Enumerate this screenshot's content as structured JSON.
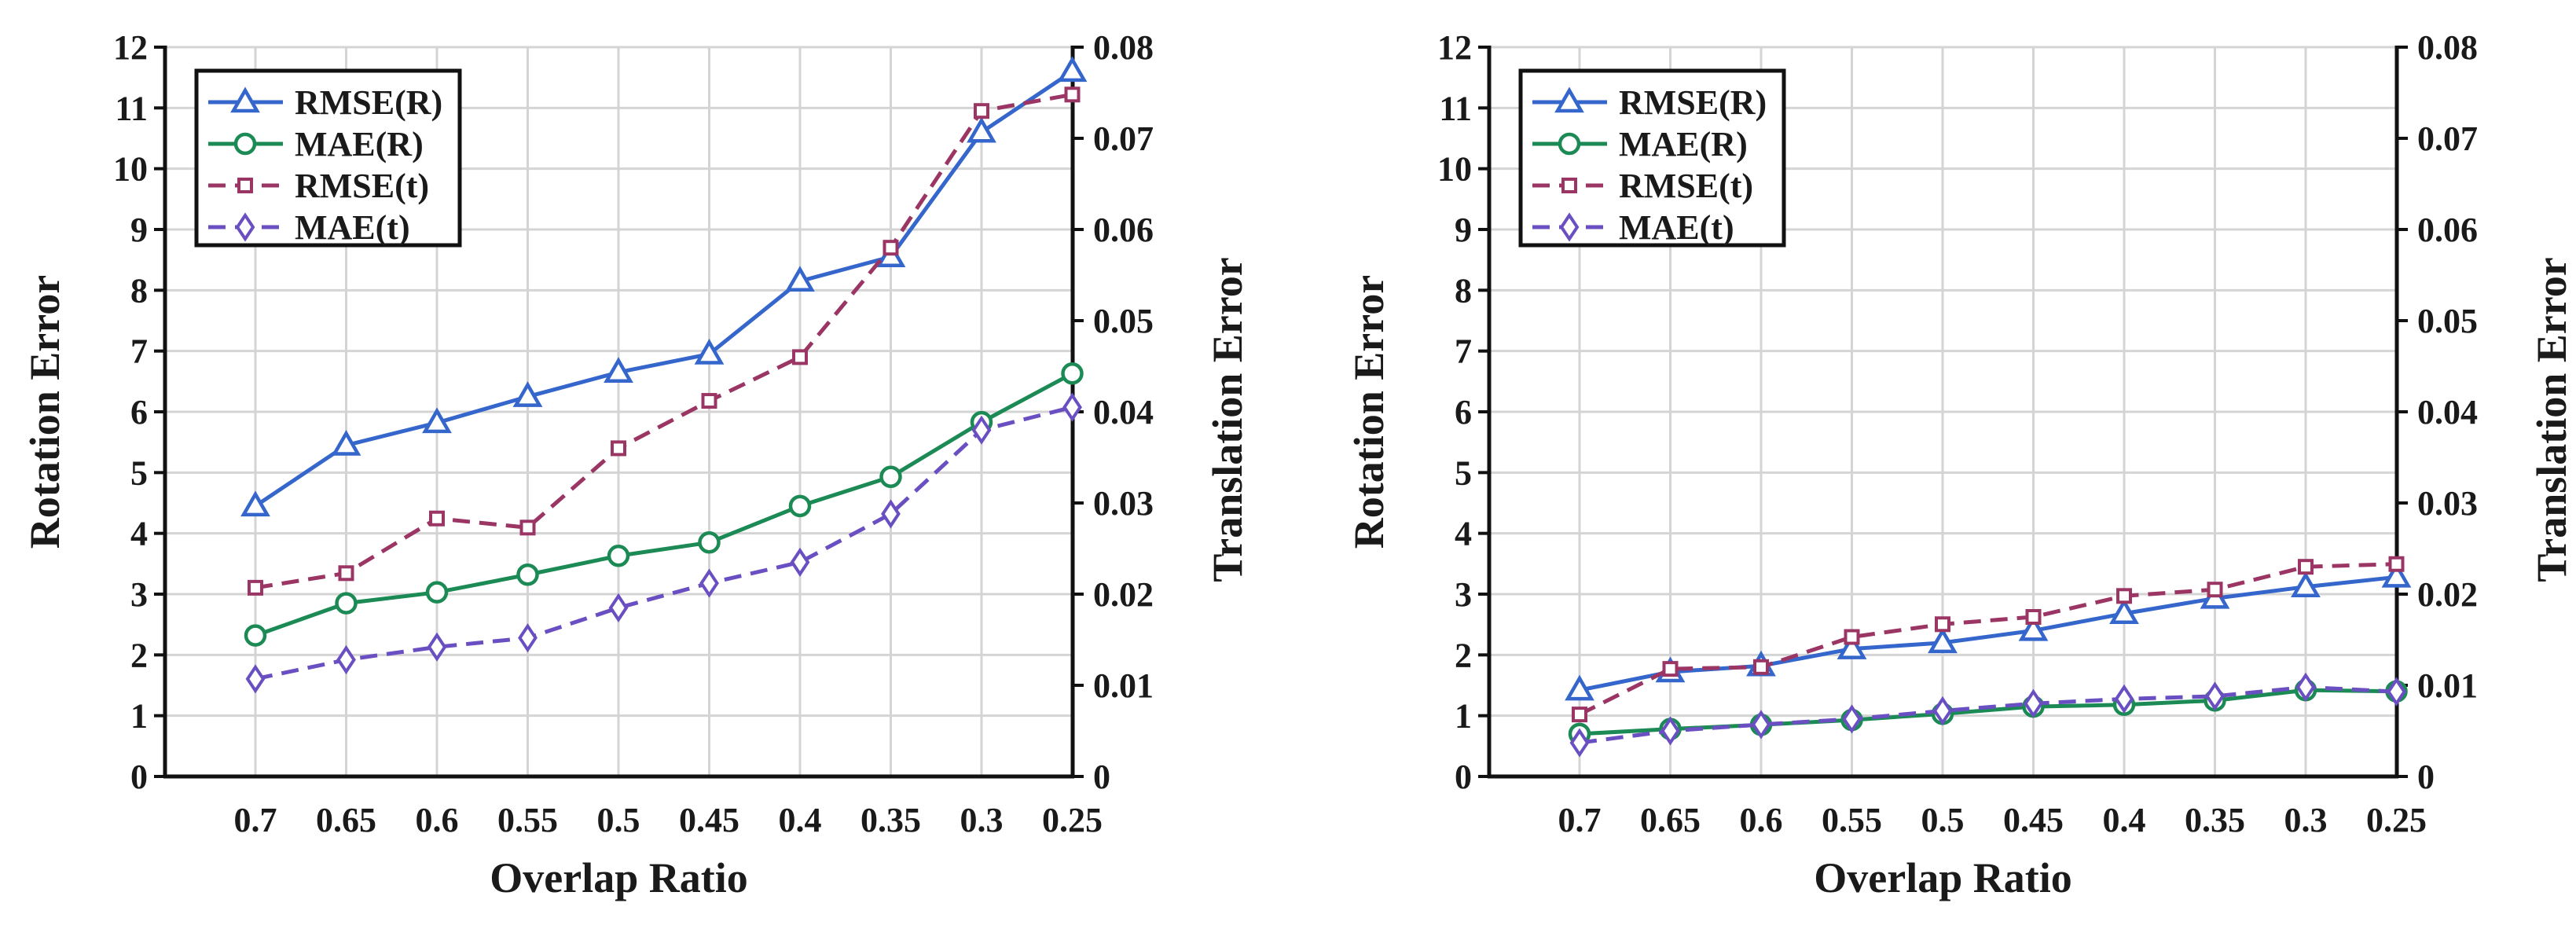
{
  "colors": {
    "rmse_r": "#3566cc",
    "mae_r": "#1c8a55",
    "rmse_t": "#9a3564",
    "mae_t": "#6a4fc2",
    "grid": "#d4d4d4",
    "axis": "#111111"
  },
  "chart_data": [
    {
      "type": "line",
      "title": "",
      "xlabel": "Overlap Ratio",
      "ylabel": "Rotation Error",
      "y2label": "Translation Error",
      "categories": [
        "0.7",
        "0.65",
        "0.6",
        "0.55",
        "0.5",
        "0.45",
        "0.4",
        "0.35",
        "0.3",
        "0.25"
      ],
      "ylim": [
        0,
        12
      ],
      "y2lim": [
        0,
        0.08
      ],
      "yticks": [
        "0",
        "1",
        "2",
        "3",
        "4",
        "5",
        "6",
        "7",
        "8",
        "9",
        "10",
        "11",
        "12"
      ],
      "y2ticks": [
        "0",
        "0.01",
        "0.02",
        "0.03",
        "0.04",
        "0.05",
        "0.06",
        "0.07",
        "0.08"
      ],
      "grid": true,
      "legend_position": "top-left",
      "series": [
        {
          "name": "RMSE(R)",
          "axis": "left",
          "values": [
            4.45,
            5.45,
            5.82,
            6.25,
            6.65,
            6.95,
            8.15,
            8.55,
            10.6,
            11.6
          ]
        },
        {
          "name": "MAE(R)",
          "axis": "left",
          "values": [
            2.32,
            2.85,
            3.03,
            3.32,
            3.63,
            3.85,
            4.45,
            4.93,
            5.83,
            6.63
          ]
        },
        {
          "name": "RMSE(t)",
          "axis": "right",
          "values": [
            0.0207,
            0.0223,
            0.0283,
            0.0273,
            0.036,
            0.0412,
            0.046,
            0.058,
            0.073,
            0.0748
          ]
        },
        {
          "name": "MAE(t)",
          "axis": "right",
          "values": [
            0.0107,
            0.0128,
            0.0142,
            0.0152,
            0.0185,
            0.0212,
            0.0235,
            0.0288,
            0.038,
            0.0405
          ]
        }
      ]
    },
    {
      "type": "line",
      "title": "",
      "xlabel": "Overlap Ratio",
      "ylabel": "Rotation Error",
      "y2label": "Translation Error",
      "categories": [
        "0.7",
        "0.65",
        "0.6",
        "0.55",
        "0.5",
        "0.45",
        "0.4",
        "0.35",
        "0.3",
        "0.25"
      ],
      "ylim": [
        0,
        12
      ],
      "y2lim": [
        0,
        0.08
      ],
      "yticks": [
        "0",
        "1",
        "2",
        "3",
        "4",
        "5",
        "6",
        "7",
        "8",
        "9",
        "10",
        "11",
        "12"
      ],
      "y2ticks": [
        "0",
        "0.01",
        "0.02",
        "0.03",
        "0.04",
        "0.05",
        "0.06",
        "0.07",
        "0.08"
      ],
      "grid": true,
      "legend_position": "top-left",
      "series": [
        {
          "name": "RMSE(R)",
          "axis": "left",
          "values": [
            1.42,
            1.72,
            1.82,
            2.1,
            2.2,
            2.4,
            2.68,
            2.93,
            3.12,
            3.28
          ]
        },
        {
          "name": "MAE(R)",
          "axis": "left",
          "values": [
            0.7,
            0.78,
            0.85,
            0.93,
            1.03,
            1.15,
            1.18,
            1.25,
            1.42,
            1.4
          ]
        },
        {
          "name": "RMSE(t)",
          "axis": "right",
          "values": [
            0.0068,
            0.0118,
            0.012,
            0.0153,
            0.0167,
            0.0175,
            0.0198,
            0.0205,
            0.023,
            0.0233
          ]
        },
        {
          "name": "MAE(t)",
          "axis": "right",
          "values": [
            0.0037,
            0.005,
            0.0057,
            0.0063,
            0.0072,
            0.008,
            0.0085,
            0.0088,
            0.0098,
            0.0093
          ]
        }
      ]
    }
  ]
}
